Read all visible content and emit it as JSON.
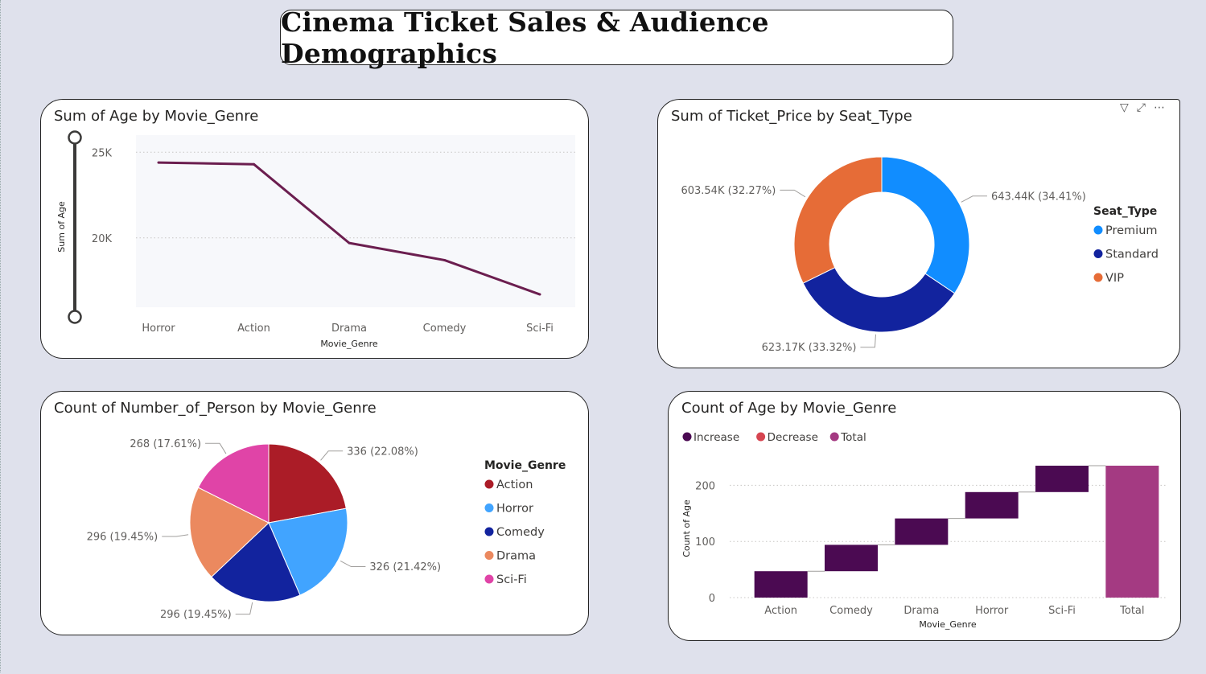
{
  "report_title": "Cinema Ticket Sales & Audience Demographics",
  "line_chart_title": "Sum of Age by Movie_Genre",
  "donut_chart_title": "Sum of Ticket_Price by Seat_Type",
  "pie_chart_title": "Count of Number_of_Person by Movie_Genre",
  "waterfall_chart_title": "Count of Age by Movie_Genre",
  "visual_header_icons": [
    "filter-icon",
    "focus-mode-icon",
    "more-options-icon"
  ],
  "chart_data": [
    {
      "type": "line",
      "title": "Sum of Age by Movie_Genre",
      "xlabel": "Movie_Genre",
      "ylabel": "Sum of Age",
      "categories": [
        "Horror",
        "Action",
        "Drama",
        "Comedy",
        "Sci-Fi"
      ],
      "series": [
        {
          "values": [
            24400,
            24300,
            19700,
            18700,
            16700
          ]
        }
      ],
      "yticks": [
        "25K",
        "20K"
      ],
      "ytick_values": [
        25000,
        20000
      ],
      "ylim": [
        15950,
        26000
      ],
      "grid": true,
      "zoom_slider": true,
      "color": "#6b1e4f"
    },
    {
      "type": "pie",
      "subtype": "donut",
      "title": "Sum of Ticket_Price by Seat_Type",
      "legend_title": "Seat_Type",
      "legend_position": "right",
      "slices": [
        {
          "name": "Premium",
          "value": 643440,
          "label": "643.44K (34.41%)",
          "color": "#118dff"
        },
        {
          "name": "Standard",
          "value": 623170,
          "label": "623.17K (33.32%)",
          "color": "#12239e"
        },
        {
          "name": "VIP",
          "value": 603540,
          "label": "603.54K (32.27%)",
          "color": "#e66c37"
        }
      ]
    },
    {
      "type": "pie",
      "title": "Count of Number_of_Person by Movie_Genre",
      "legend_title": "Movie_Genre",
      "legend_position": "right",
      "slices": [
        {
          "name": "Action",
          "value": 336,
          "label": "336 (22.08%)",
          "color": "#ab1c27"
        },
        {
          "name": "Horror",
          "value": 326,
          "label": "326 (21.42%)",
          "color": "#41a4ff"
        },
        {
          "name": "Comedy",
          "value": 296,
          "label": "296 (19.45%)",
          "color": "#12239e"
        },
        {
          "name": "Drama",
          "value": 296,
          "label": "296 (19.45%)",
          "color": "#eb895f"
        },
        {
          "name": "Sci-Fi",
          "value": 268,
          "label": "268 (17.61%)",
          "color": "#e044a7"
        }
      ]
    },
    {
      "type": "bar",
      "subtype": "waterfall",
      "title": "Count of Age by Movie_Genre",
      "xlabel": "Movie_Genre",
      "ylabel": "Count of Age",
      "legend": [
        {
          "name": "Increase",
          "color": "#4b0a52"
        },
        {
          "name": "Decrease",
          "color": "#d64550"
        },
        {
          "name": "Total",
          "color": "#a43a82"
        }
      ],
      "legend_position": "top-left",
      "categories": [
        "Action",
        "Comedy",
        "Drama",
        "Horror",
        "Sci-Fi",
        "Total"
      ],
      "values": [
        47,
        47,
        47,
        47,
        47,
        235
      ],
      "yticks": [
        0,
        100,
        200
      ],
      "ylim": [
        0,
        235
      ],
      "grid": true
    }
  ]
}
